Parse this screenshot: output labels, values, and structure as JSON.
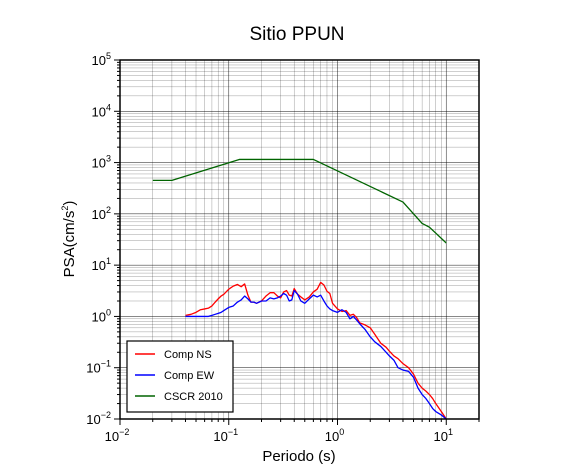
{
  "chart_data": {
    "type": "line",
    "title": "Sitio PPUN",
    "xlabel": "Periodo (s)",
    "ylabel": {
      "main": "PSA(cm/s",
      "sup": "2",
      "end": ")"
    },
    "x_scale": "log",
    "y_scale": "log",
    "xlim": [
      0.01,
      20
    ],
    "ylim": [
      0.01,
      100000
    ],
    "grid": true,
    "legend_position": "bottom-left",
    "x_ticks": [
      {
        "base": "10",
        "exp": "−2",
        "value": 0.01
      },
      {
        "base": "10",
        "exp": "−1",
        "value": 0.1
      },
      {
        "base": "10",
        "exp": "0",
        "value": 1
      },
      {
        "base": "10",
        "exp": "1",
        "value": 10
      }
    ],
    "y_ticks": [
      {
        "base": "10",
        "exp": "−2",
        "value": 0.01
      },
      {
        "base": "10",
        "exp": "−1",
        "value": 0.1
      },
      {
        "base": "10",
        "exp": "0",
        "value": 1
      },
      {
        "base": "10",
        "exp": "1",
        "value": 10
      },
      {
        "base": "10",
        "exp": "2",
        "value": 100
      },
      {
        "base": "10",
        "exp": "3",
        "value": 1000
      },
      {
        "base": "10",
        "exp": "4",
        "value": 10000
      },
      {
        "base": "10",
        "exp": "5",
        "value": 100000
      }
    ],
    "series": [
      {
        "name": "Comp NS",
        "color": "#ff0000",
        "x": [
          0.04,
          0.045,
          0.05,
          0.055,
          0.06,
          0.065,
          0.07,
          0.075,
          0.08,
          0.085,
          0.09,
          0.1,
          0.11,
          0.12,
          0.13,
          0.14,
          0.15,
          0.16,
          0.17,
          0.18,
          0.2,
          0.22,
          0.24,
          0.26,
          0.28,
          0.3,
          0.32,
          0.34,
          0.36,
          0.38,
          0.4,
          0.43,
          0.46,
          0.5,
          0.55,
          0.6,
          0.65,
          0.7,
          0.75,
          0.8,
          0.85,
          0.9,
          1.0,
          1.1,
          1.2,
          1.3,
          1.4,
          1.5,
          1.6,
          1.8,
          2.0,
          2.2,
          2.5,
          2.8,
          3.0,
          3.3,
          3.6,
          4.0,
          4.5,
          5.0,
          5.5,
          6.0,
          6.5,
          7.0,
          7.5,
          8.0,
          9.0,
          10.0
        ],
        "values": [
          1.05,
          1.1,
          1.2,
          1.35,
          1.4,
          1.45,
          1.6,
          1.9,
          2.2,
          2.5,
          2.7,
          3.4,
          3.9,
          4.2,
          3.8,
          4.3,
          2.6,
          1.9,
          1.9,
          1.8,
          2.0,
          2.5,
          2.9,
          2.9,
          2.5,
          2.3,
          3.0,
          3.2,
          2.6,
          2.5,
          3.5,
          2.7,
          2.4,
          2.1,
          2.4,
          3.0,
          3.4,
          4.6,
          4.1,
          3.1,
          2.8,
          1.8,
          1.4,
          1.25,
          1.3,
          1.05,
          1.1,
          0.95,
          0.75,
          0.68,
          0.6,
          0.45,
          0.3,
          0.25,
          0.21,
          0.17,
          0.15,
          0.12,
          0.1,
          0.075,
          0.05,
          0.04,
          0.035,
          0.03,
          0.025,
          0.02,
          0.014,
          0.01
        ]
      },
      {
        "name": "Comp EW",
        "color": "#0000ff",
        "x": [
          0.04,
          0.045,
          0.05,
          0.055,
          0.06,
          0.065,
          0.07,
          0.075,
          0.08,
          0.085,
          0.09,
          0.1,
          0.11,
          0.12,
          0.13,
          0.14,
          0.15,
          0.16,
          0.17,
          0.18,
          0.2,
          0.22,
          0.24,
          0.26,
          0.28,
          0.3,
          0.32,
          0.34,
          0.36,
          0.38,
          0.4,
          0.43,
          0.46,
          0.5,
          0.55,
          0.6,
          0.65,
          0.7,
          0.75,
          0.8,
          0.85,
          0.9,
          1.0,
          1.1,
          1.2,
          1.3,
          1.4,
          1.5,
          1.6,
          1.8,
          2.0,
          2.2,
          2.5,
          2.8,
          3.0,
          3.3,
          3.6,
          4.0,
          4.5,
          5.0,
          5.5,
          6.0,
          6.5,
          7.0,
          7.5,
          8.0,
          9.0,
          10.0
        ],
        "values": [
          1.0,
          1.0,
          1.0,
          1.0,
          1.0,
          1.0,
          1.05,
          1.1,
          1.15,
          1.2,
          1.3,
          1.5,
          1.6,
          1.9,
          2.1,
          2.5,
          2.2,
          1.9,
          1.9,
          1.8,
          2.0,
          2.0,
          2.3,
          2.2,
          2.3,
          2.5,
          2.8,
          2.6,
          2.0,
          2.1,
          3.2,
          2.7,
          2.0,
          1.8,
          2.2,
          2.6,
          2.4,
          2.6,
          2.0,
          1.6,
          1.4,
          1.3,
          1.2,
          1.35,
          1.2,
          0.9,
          1.0,
          0.85,
          0.72,
          0.55,
          0.4,
          0.32,
          0.26,
          0.2,
          0.17,
          0.14,
          0.1,
          0.09,
          0.085,
          0.065,
          0.04,
          0.03,
          0.025,
          0.02,
          0.016,
          0.014,
          0.012,
          0.01
        ]
      },
      {
        "name": "CSCR 2010",
        "color": "#006400",
        "x": [
          0.02,
          0.03,
          0.125,
          0.6,
          4.0,
          6.0,
          7.0,
          10.0
        ],
        "values": [
          450,
          450,
          1150,
          1150,
          170,
          65,
          55,
          27
        ]
      }
    ]
  }
}
